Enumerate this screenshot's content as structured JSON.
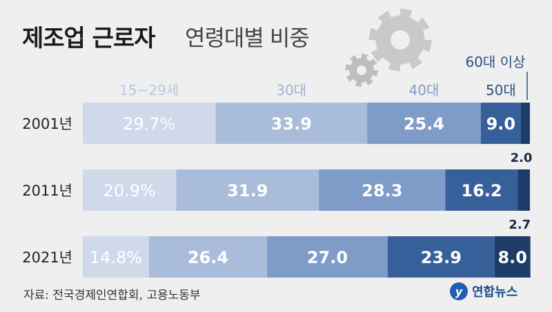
{
  "title": {
    "bold": "제조업 근로자",
    "light": "연령대별 비중"
  },
  "source": "자료: 전국경제인연합회, 고용노동부",
  "logo": {
    "text": "연합뉴스",
    "mark": "y"
  },
  "icons": {
    "decoration": "gears-icon"
  },
  "colors": {
    "background": "#efefef",
    "segments": [
      "#cfd9ea",
      "#a9bcda",
      "#7f9bc8",
      "#37609a",
      "#1d3c68"
    ],
    "header_labels": [
      "#b9c8e0",
      "#9fb2d2",
      "#7f9bc8",
      "#2e4f80",
      "#2e4f80"
    ],
    "text_dark": "#1a2a4a"
  },
  "chart_data": {
    "type": "bar",
    "stacked": true,
    "orientation": "horizontal",
    "categories": [
      "2001년",
      "2011년",
      "2021년"
    ],
    "series": [
      {
        "name": "15~29세",
        "values": [
          29.7,
          20.9,
          14.8
        ]
      },
      {
        "name": "30대",
        "values": [
          33.9,
          31.9,
          26.4
        ]
      },
      {
        "name": "40대",
        "values": [
          25.4,
          28.3,
          27.0
        ]
      },
      {
        "name": "50대",
        "values": [
          9.0,
          16.2,
          23.9
        ]
      },
      {
        "name": "60대 이상",
        "values": [
          2.0,
          2.7,
          8.0
        ]
      }
    ],
    "data_labels": [
      [
        "29.7%",
        "33.9",
        "25.4",
        "9.0",
        "2.0"
      ],
      [
        "20.9%",
        "31.9",
        "28.3",
        "16.2",
        "2.7"
      ],
      [
        "14.8%",
        "26.4",
        "27.0",
        "23.9",
        "8.0"
      ]
    ],
    "xlim": [
      0,
      100
    ],
    "legend": "top"
  }
}
